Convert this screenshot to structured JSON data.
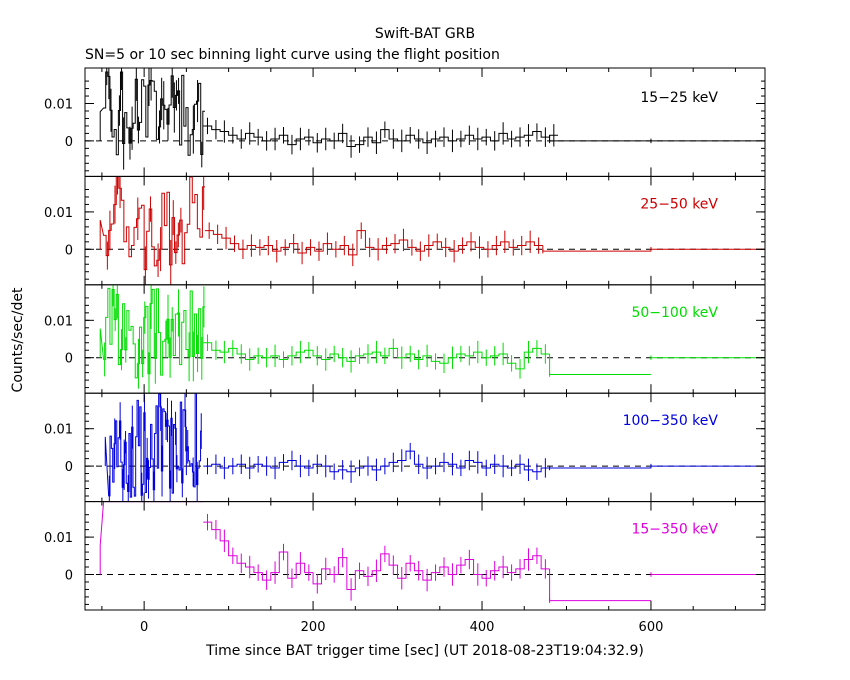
{
  "chart_data": {
    "type": "line",
    "title": "Swift-BAT GRB",
    "subtitle": "SN=5 or 10 sec binning light curve using the flight position",
    "xlabel": "Time since BAT trigger time [sec] (UT 2018-08-23T19:04:32.9)",
    "ylabel": "Counts/sec/det",
    "xlim": [
      -70,
      735
    ],
    "xticks": [
      0,
      200,
      400,
      600
    ],
    "yticks": [
      0,
      0.01
    ],
    "ytick_labels": [
      "0",
      "0.01"
    ],
    "grid": false,
    "reference_line": 0,
    "colors": {
      "15-25": "#000000",
      "25-50": "#cc0000",
      "50-100": "#00dd00",
      "100-350": "#0000dd",
      "15-350": "#dd00dd"
    },
    "panels": [
      {
        "label": "15−25 keV",
        "color": "#000000",
        "ylim": [
          -0.0095,
          0.0195
        ],
        "burst": {
          "x0": -48,
          "x1": 70,
          "step": 2.5,
          "lo": -0.004,
          "hi": 0.0195,
          "seed": 1
        },
        "bins": [
          [
            70,
            0.004
          ],
          [
            80,
            0.003
          ],
          [
            90,
            0.0025
          ],
          [
            100,
            0.0015
          ],
          [
            110,
            0.0005
          ],
          [
            120,
            0.002
          ],
          [
            130,
            0.001
          ],
          [
            140,
            0
          ],
          [
            150,
            0.0005
          ],
          [
            160,
            0.0015
          ],
          [
            170,
            -0.001
          ],
          [
            180,
            0.0005
          ],
          [
            190,
            0.001
          ],
          [
            200,
            -0.0005
          ],
          [
            210,
            0.0005
          ],
          [
            220,
            0
          ],
          [
            230,
            0.002
          ],
          [
            240,
            -0.0015
          ],
          [
            250,
            -0.001
          ],
          [
            260,
            0.001
          ],
          [
            270,
            -0.0005
          ],
          [
            280,
            0.003
          ],
          [
            290,
            0.0005
          ],
          [
            300,
            0
          ],
          [
            310,
            0.0015
          ],
          [
            320,
            0.0005
          ],
          [
            330,
            -0.0005
          ],
          [
            340,
            0.0005
          ],
          [
            350,
            0.001
          ],
          [
            360,
            0
          ],
          [
            370,
            0.0005
          ],
          [
            380,
            0.0015
          ],
          [
            390,
            0.0005
          ],
          [
            400,
            0.001
          ],
          [
            410,
            0
          ],
          [
            420,
            0.002
          ],
          [
            430,
            0.0005
          ],
          [
            440,
            0.001
          ],
          [
            450,
            0.0015
          ],
          [
            460,
            0.0025
          ],
          [
            470,
            0.001
          ],
          [
            480,
            0.0015
          ]
        ],
        "tail": [
          [
            480,
            600,
            0
          ],
          [
            600,
            735,
            0
          ]
        ]
      },
      {
        "label": "25−50 keV",
        "color": "#cc0000",
        "ylim": [
          -0.0095,
          0.0195
        ],
        "burst": {
          "x0": -48,
          "x1": 72,
          "step": 3,
          "lo": -0.006,
          "hi": 0.0195,
          "seed": 2
        },
        "bins": [
          [
            72,
            0.005
          ],
          [
            82,
            0.004
          ],
          [
            92,
            0.003
          ],
          [
            102,
            0.0015
          ],
          [
            112,
            0
          ],
          [
            122,
            0.001
          ],
          [
            132,
            0.0005
          ],
          [
            142,
            0.001
          ],
          [
            152,
            -0.0005
          ],
          [
            162,
            0.0005
          ],
          [
            172,
            0.0015
          ],
          [
            182,
            -0.001
          ],
          [
            192,
            0.0005
          ],
          [
            202,
            -0.0005
          ],
          [
            212,
            0.0015
          ],
          [
            222,
            0
          ],
          [
            232,
            0.001
          ],
          [
            242,
            -0.0015
          ],
          [
            252,
            0.005
          ],
          [
            262,
            0.0005
          ],
          [
            272,
            0
          ],
          [
            282,
            0.001
          ],
          [
            292,
            0.0015
          ],
          [
            302,
            0.0025
          ],
          [
            312,
            0.0005
          ],
          [
            322,
            -0.0005
          ],
          [
            332,
            0.001
          ],
          [
            342,
            0.002
          ],
          [
            352,
            0.0005
          ],
          [
            362,
            -0.0005
          ],
          [
            372,
            0.001
          ],
          [
            382,
            0.002
          ],
          [
            392,
            0.0005
          ],
          [
            402,
            0
          ],
          [
            412,
            0.001
          ],
          [
            422,
            0.002
          ],
          [
            432,
            0.0005
          ],
          [
            442,
            0.001
          ],
          [
            452,
            0.002
          ],
          [
            462,
            0.001
          ]
        ],
        "tail": [
          [
            472,
            600,
            -0.0005
          ],
          [
            600,
            735,
            0
          ]
        ]
      },
      {
        "label": "50−100 keV",
        "color": "#00dd00",
        "ylim": [
          -0.0095,
          0.0195
        ],
        "burst": {
          "x0": -48,
          "x1": 70,
          "step": 2.5,
          "lo": -0.006,
          "hi": 0.0195,
          "seed": 3
        },
        "bins": [
          [
            70,
            0.004
          ],
          [
            80,
            0.002
          ],
          [
            90,
            0.0015
          ],
          [
            100,
            0.0025
          ],
          [
            110,
            0.001
          ],
          [
            120,
            -0.0005
          ],
          [
            130,
            0.0005
          ],
          [
            140,
            0
          ],
          [
            150,
            0.0005
          ],
          [
            160,
            -0.0005
          ],
          [
            170,
            0.0005
          ],
          [
            180,
            0.0015
          ],
          [
            190,
            0.002
          ],
          [
            200,
            0.0005
          ],
          [
            210,
            -0.0005
          ],
          [
            220,
            0.001
          ],
          [
            230,
            0
          ],
          [
            240,
            -0.001
          ],
          [
            250,
            0.0005
          ],
          [
            260,
            0.001
          ],
          [
            270,
            0.0015
          ],
          [
            280,
            0.0005
          ],
          [
            290,
            0.0025
          ],
          [
            300,
            0
          ],
          [
            310,
            0.001
          ],
          [
            320,
            -0.0005
          ],
          [
            330,
            0.0005
          ],
          [
            340,
            -0.001
          ],
          [
            350,
            -0.0015
          ],
          [
            360,
            0
          ],
          [
            370,
            0.001
          ],
          [
            380,
            0.0005
          ],
          [
            390,
            0.0015
          ],
          [
            400,
            0
          ],
          [
            410,
            0.0005
          ],
          [
            420,
            0.001
          ],
          [
            430,
            -0.0015
          ],
          [
            440,
            -0.003
          ],
          [
            450,
            0.0015
          ],
          [
            460,
            0.0025
          ],
          [
            470,
            0.001
          ]
        ],
        "tail": [
          [
            480,
            600,
            -0.0045
          ],
          [
            600,
            735,
            0
          ]
        ]
      },
      {
        "label": "100−350 keV",
        "color": "#0000dd",
        "ylim": [
          -0.0095,
          0.0195
        ],
        "burst": {
          "x0": -42,
          "x1": 68,
          "step": 1.6,
          "lo": -0.0095,
          "hi": 0.0195,
          "seed": 4
        },
        "bins": [
          [
            70,
            0
          ],
          [
            80,
            0.0005
          ],
          [
            90,
            -0.0005
          ],
          [
            100,
            0
          ],
          [
            110,
            0.0005
          ],
          [
            120,
            -0.0005
          ],
          [
            130,
            0.0005
          ],
          [
            140,
            0
          ],
          [
            150,
            -0.0005
          ],
          [
            160,
            0.001
          ],
          [
            170,
            0.0015
          ],
          [
            180,
            0
          ],
          [
            190,
            -0.0005
          ],
          [
            200,
            0.0005
          ],
          [
            210,
            0
          ],
          [
            220,
            -0.0015
          ],
          [
            230,
            -0.001
          ],
          [
            240,
            -0.0015
          ],
          [
            250,
            -0.0005
          ],
          [
            260,
            0
          ],
          [
            270,
            -0.001
          ],
          [
            280,
            0
          ],
          [
            290,
            0.001
          ],
          [
            300,
            0.0015
          ],
          [
            310,
            0.004
          ],
          [
            320,
            0.0005
          ],
          [
            330,
            -0.0005
          ],
          [
            340,
            0
          ],
          [
            350,
            0.001
          ],
          [
            360,
            0.0005
          ],
          [
            370,
            -0.0005
          ],
          [
            380,
            0.0015
          ],
          [
            390,
            0.001
          ],
          [
            400,
            -0.0005
          ],
          [
            410,
            0.0005
          ],
          [
            420,
            0
          ],
          [
            430,
            -0.0005
          ],
          [
            440,
            0.0005
          ],
          [
            450,
            -0.001
          ],
          [
            460,
            -0.0015
          ],
          [
            470,
            -0.0005
          ]
        ],
        "tail": [
          [
            480,
            600,
            -0.0005
          ],
          [
            600,
            735,
            0
          ]
        ]
      },
      {
        "label": "15−350 keV",
        "color": "#dd00dd",
        "ylim": [
          -0.0095,
          0.0195
        ],
        "burst": {
          "x0": -48,
          "x1": 70,
          "step": 118,
          "lo": 0.0195,
          "hi": 0.0195,
          "seed": 5
        },
        "bins": [
          [
            70,
            0.014
          ],
          [
            80,
            0.012
          ],
          [
            90,
            0.009
          ],
          [
            100,
            0.005
          ],
          [
            110,
            0.003
          ],
          [
            120,
            0.002
          ],
          [
            130,
            0.0005
          ],
          [
            140,
            -0.0015
          ],
          [
            150,
            0.0005
          ],
          [
            160,
            0.006
          ],
          [
            170,
            -0.001
          ],
          [
            180,
            0.003
          ],
          [
            190,
            0.0005
          ],
          [
            200,
            -0.0025
          ],
          [
            210,
            0.0015
          ],
          [
            220,
            0
          ],
          [
            230,
            0.0045
          ],
          [
            240,
            -0.004
          ],
          [
            250,
            0.001
          ],
          [
            260,
            -0.0005
          ],
          [
            270,
            0.001
          ],
          [
            280,
            0.0055
          ],
          [
            290,
            0.0025
          ],
          [
            300,
            -0.001
          ],
          [
            310,
            0.003
          ],
          [
            320,
            0.001
          ],
          [
            330,
            -0.0015
          ],
          [
            340,
            0.0005
          ],
          [
            350,
            0.002
          ],
          [
            360,
            0
          ],
          [
            370,
            0.0025
          ],
          [
            380,
            0.004
          ],
          [
            390,
            0
          ],
          [
            400,
            -0.001
          ],
          [
            410,
            0.001
          ],
          [
            420,
            0.002
          ],
          [
            430,
            0.0005
          ],
          [
            440,
            0.0015
          ],
          [
            450,
            0.004
          ],
          [
            460,
            0.005
          ],
          [
            470,
            0.0015
          ]
        ],
        "tail": [
          [
            480,
            600,
            -0.007
          ],
          [
            600,
            735,
            0
          ]
        ]
      }
    ]
  }
}
